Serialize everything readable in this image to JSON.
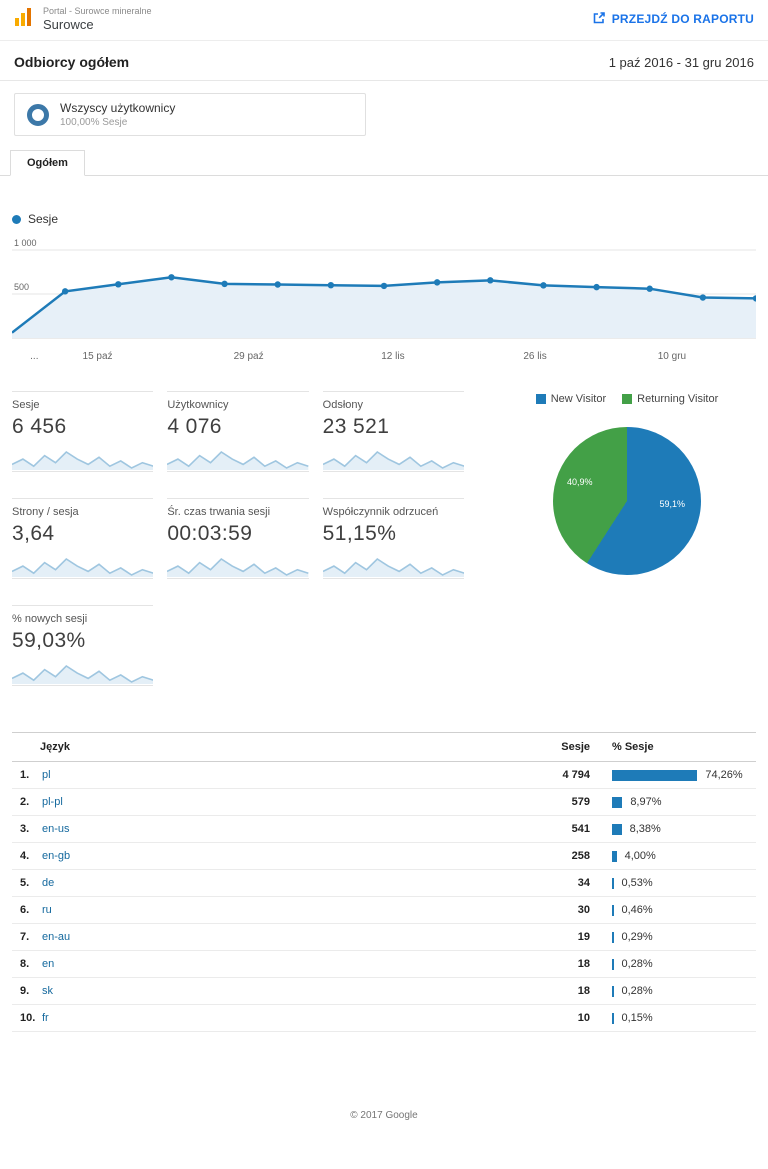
{
  "header": {
    "account": "Portal - Surowce mineralne",
    "property": "Surowce",
    "report_link": "PRZEJDŹ DO RAPORTU"
  },
  "report": {
    "title": "Odbiorcy ogółem",
    "date_range": "1 paź 2016 - 31 gru 2016"
  },
  "segment": {
    "name": "Wszyscy użytkownicy",
    "detail": "100,00% Sesje"
  },
  "tabs": [
    {
      "label": "Ogółem"
    }
  ],
  "chart_data": [
    {
      "type": "area",
      "legend": "Sesje",
      "ylabel": "Sesje",
      "ylim": [
        0,
        1000
      ],
      "y_ticks": [
        "1 000",
        "500"
      ],
      "x_labels": [
        "...",
        "15 paź",
        "29 paź",
        "12 lis",
        "26 lis",
        "10 gru"
      ],
      "values": [
        60,
        530,
        610,
        690,
        615,
        608,
        600,
        592,
        632,
        655,
        598,
        578,
        560,
        460,
        450
      ]
    },
    {
      "type": "pie",
      "legend_position": "top",
      "slices": [
        {
          "label": "New Visitor",
          "value": 59.1,
          "display": "59,1%",
          "color": "#1e7bb8"
        },
        {
          "label": "Returning Visitor",
          "value": 40.9,
          "display": "40,9%",
          "color": "#43a047"
        }
      ]
    },
    {
      "type": "table",
      "columns": [
        "Język",
        "Sesje",
        "% Sesje"
      ],
      "rows": [
        {
          "rank": "1.",
          "lang": "pl",
          "sessions": "4 794",
          "percent": 74.26,
          "percent_display": "74,26%"
        },
        {
          "rank": "2.",
          "lang": "pl-pl",
          "sessions": "579",
          "percent": 8.97,
          "percent_display": "8,97%"
        },
        {
          "rank": "3.",
          "lang": "en-us",
          "sessions": "541",
          "percent": 8.38,
          "percent_display": "8,38%"
        },
        {
          "rank": "4.",
          "lang": "en-gb",
          "sessions": "258",
          "percent": 4.0,
          "percent_display": "4,00%"
        },
        {
          "rank": "5.",
          "lang": "de",
          "sessions": "34",
          "percent": 0.53,
          "percent_display": "0,53%"
        },
        {
          "rank": "6.",
          "lang": "ru",
          "sessions": "30",
          "percent": 0.46,
          "percent_display": "0,46%"
        },
        {
          "rank": "7.",
          "lang": "en-au",
          "sessions": "19",
          "percent": 0.29,
          "percent_display": "0,29%"
        },
        {
          "rank": "8.",
          "lang": "en",
          "sessions": "18",
          "percent": 0.28,
          "percent_display": "0,28%"
        },
        {
          "rank": "9.",
          "lang": "sk",
          "sessions": "18",
          "percent": 0.28,
          "percent_display": "0,28%"
        },
        {
          "rank": "10.",
          "lang": "fr",
          "sessions": "10",
          "percent": 0.15,
          "percent_display": "0,15%"
        }
      ]
    }
  ],
  "metrics": [
    {
      "label": "Sesje",
      "value": "6 456"
    },
    {
      "label": "Użytkownicy",
      "value": "4 076"
    },
    {
      "label": "Odsłony",
      "value": "23 521"
    },
    {
      "label": "Strony / sesja",
      "value": "3,64"
    },
    {
      "label": "Śr. czas trwania sesji",
      "value": "00:03:59"
    },
    {
      "label": "Współczynnik odrzuceń",
      "value": "51,15%"
    },
    {
      "label": "% nowych sesji",
      "value": "59,03%"
    }
  ],
  "sparkline": [
    52,
    58,
    50,
    62,
    54,
    66,
    58,
    52,
    60,
    50,
    56,
    48,
    54,
    50
  ],
  "footer": {
    "copyright": "© 2017 Google"
  },
  "colors": {
    "blue": "#1e7bb8",
    "green": "#43a047",
    "link": "#15699e",
    "header_link": "#1a73e8",
    "logo_orange": "#f9ab00",
    "logo_dark_orange": "#e37400",
    "area_fill": "#e7f0f8",
    "spark_line": "#9fc6e0",
    "spark_fill": "#e4eff7"
  }
}
